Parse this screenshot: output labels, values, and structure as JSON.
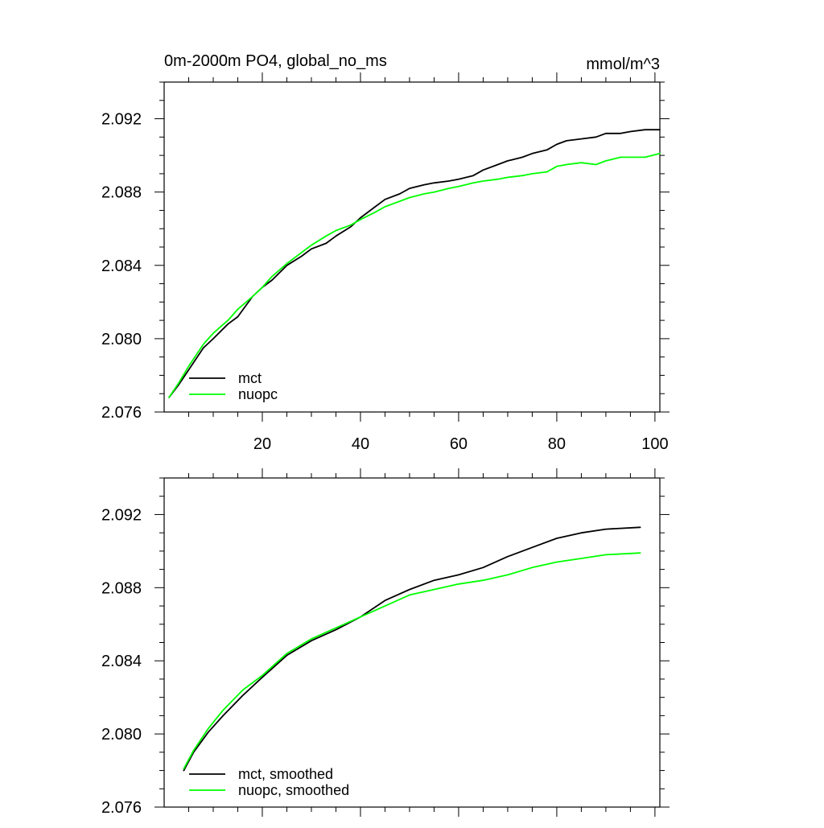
{
  "figure": {
    "title_left": "0m-2000m PO4, global_no_ms",
    "title_right": "mmol/m^3"
  },
  "colors": {
    "mct": "#000000",
    "nuopc": "#00ff00"
  },
  "chart_data": [
    {
      "type": "line",
      "title": "0m-2000m PO4, global_no_ms",
      "units": "mmol/m^3",
      "xlabel": "",
      "ylabel": "",
      "xlim": [
        0,
        101
      ],
      "ylim": [
        2.076,
        2.094
      ],
      "xticks": [
        20,
        40,
        60,
        80,
        100
      ],
      "xtick_labels": [
        "20",
        "40",
        "60",
        "80",
        "100"
      ],
      "yticks": [
        2.076,
        2.08,
        2.084,
        2.088,
        2.092
      ],
      "ytick_labels": [
        "2.076",
        "2.080",
        "2.084",
        "2.088",
        "2.092"
      ],
      "legend_position": "bottom-left",
      "series": [
        {
          "name": "mct",
          "color": "#000000",
          "x": [
            1,
            3,
            5,
            8,
            10,
            13,
            15,
            18,
            20,
            22,
            25,
            28,
            30,
            33,
            35,
            38,
            40,
            43,
            45,
            48,
            50,
            53,
            55,
            58,
            60,
            63,
            65,
            68,
            70,
            73,
            75,
            78,
            80,
            82,
            85,
            88,
            90,
            93,
            95,
            98,
            101
          ],
          "y": [
            2.0768,
            2.0775,
            2.0783,
            2.0795,
            2.08,
            2.0808,
            2.0812,
            2.0823,
            2.0828,
            2.0832,
            2.084,
            2.0845,
            2.0849,
            2.0852,
            2.0856,
            2.0861,
            2.0866,
            2.0872,
            2.0876,
            2.0879,
            2.0882,
            2.0884,
            2.0885,
            2.0886,
            2.0887,
            2.0889,
            2.0892,
            2.0895,
            2.0897,
            2.0899,
            2.0901,
            2.0903,
            2.0906,
            2.0908,
            2.0909,
            2.091,
            2.0912,
            2.0912,
            2.0913,
            2.0914,
            2.0914
          ]
        },
        {
          "name": "nuopc",
          "color": "#00ff00",
          "x": [
            1,
            3,
            5,
            8,
            10,
            13,
            15,
            18,
            20,
            22,
            25,
            28,
            30,
            33,
            35,
            38,
            40,
            43,
            45,
            48,
            50,
            53,
            55,
            58,
            60,
            63,
            65,
            68,
            70,
            73,
            75,
            78,
            80,
            82,
            85,
            88,
            90,
            93,
            95,
            98,
            101
          ],
          "y": [
            2.0768,
            2.0776,
            2.0785,
            2.0797,
            2.0803,
            2.081,
            2.0816,
            2.0823,
            2.0828,
            2.0834,
            2.0841,
            2.0847,
            2.0851,
            2.0856,
            2.0859,
            2.0862,
            2.0865,
            2.0869,
            2.0872,
            2.0875,
            2.0877,
            2.0879,
            2.088,
            2.0882,
            2.0883,
            2.0885,
            2.0886,
            2.0887,
            2.0888,
            2.0889,
            2.089,
            2.0891,
            2.0894,
            2.0895,
            2.0896,
            2.0895,
            2.0897,
            2.0899,
            2.0899,
            2.0899,
            2.0901
          ]
        }
      ]
    },
    {
      "type": "line",
      "title": "",
      "xlabel": "",
      "ylabel": "",
      "xlim": [
        0,
        101
      ],
      "ylim": [
        2.076,
        2.094
      ],
      "xticks": [
        20,
        40,
        60,
        80,
        100
      ],
      "xtick_labels": [],
      "yticks": [
        2.076,
        2.08,
        2.084,
        2.088,
        2.092
      ],
      "ytick_labels": [
        "2.076",
        "2.080",
        "2.084",
        "2.088",
        "2.092"
      ],
      "legend_position": "bottom-left",
      "series": [
        {
          "name": "mct, smoothed",
          "color": "#000000",
          "x": [
            4,
            6,
            9,
            12,
            16,
            20,
            25,
            30,
            35,
            40,
            45,
            50,
            55,
            60,
            65,
            70,
            75,
            80,
            85,
            90,
            97
          ],
          "y": [
            2.078,
            2.079,
            2.0801,
            2.081,
            2.0821,
            2.0831,
            2.0843,
            2.0851,
            2.0857,
            2.0864,
            2.0873,
            2.0879,
            2.0884,
            2.0887,
            2.0891,
            2.0897,
            2.0902,
            2.0907,
            2.091,
            2.0912,
            2.0913
          ]
        },
        {
          "name": "nuopc, smoothed",
          "color": "#00ff00",
          "x": [
            4,
            6,
            9,
            12,
            16,
            20,
            25,
            30,
            35,
            40,
            45,
            50,
            55,
            60,
            65,
            70,
            75,
            80,
            85,
            90,
            97
          ],
          "y": [
            2.0781,
            2.0791,
            2.0803,
            2.0813,
            2.0824,
            2.0832,
            2.0844,
            2.0852,
            2.0858,
            2.0864,
            2.087,
            2.0876,
            2.0879,
            2.0882,
            2.0884,
            2.0887,
            2.0891,
            2.0894,
            2.0896,
            2.0898,
            2.0899
          ]
        }
      ]
    }
  ]
}
